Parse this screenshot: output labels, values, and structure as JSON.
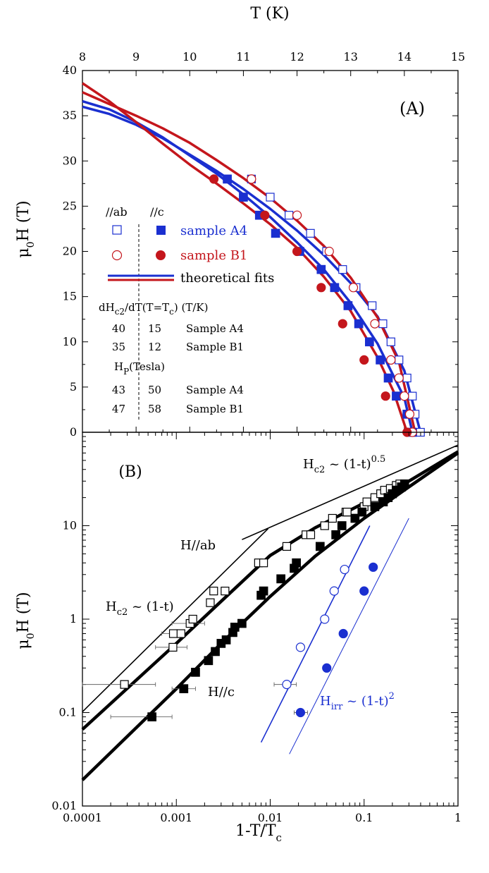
{
  "colors": {
    "blue": "#1a2fd0",
    "red": "#c4161c",
    "black": "#000000",
    "fill_white": "#ffffff"
  },
  "chart_data": [
    {
      "id": "A",
      "type": "scatter",
      "panel_label": "(A)",
      "xlabel": "T (K)",
      "ylabel_main": "μ",
      "ylabel_sub": "0",
      "ylabel_rest": "H (T)",
      "xlim": [
        8,
        15
      ],
      "ylim": [
        0,
        40
      ],
      "xticks": [
        8,
        9,
        10,
        11,
        12,
        13,
        14,
        15
      ],
      "yticks": [
        0,
        5,
        10,
        15,
        20,
        25,
        30,
        35,
        40
      ],
      "x_axis_position": "top",
      "legend": {
        "col_ab": "//ab",
        "col_c": "//c",
        "entries": [
          {
            "label": "sample A4",
            "color": "#1a2fd0"
          },
          {
            "label": "sample B1",
            "color": "#c4161c"
          },
          {
            "label": "theoretical fits",
            "color": "#000000"
          }
        ]
      },
      "table": {
        "header1_pre": "dH",
        "header1_sub": "c2",
        "header1_mid": "/dT(T=T",
        "header1_sub2": "c",
        "header1_post": ")  (T/K)",
        "rows1": [
          {
            "ab": "40",
            "c": "15",
            "sample": "Sample A4"
          },
          {
            "ab": "35",
            "c": "12",
            "sample": "Sample B1"
          }
        ],
        "header2_pre": "H",
        "header2_sub": "P",
        "header2_post": "(Tesla)",
        "rows2": [
          {
            "ab": "43",
            "c": "50",
            "sample": "Sample A4"
          },
          {
            "ab": "47",
            "c": "58",
            "sample": "Sample B1"
          }
        ]
      },
      "series": [
        {
          "name": "sample A4 //ab",
          "marker": "square-open",
          "color": "#1a2fd0",
          "points": [
            [
              11.15,
              28
            ],
            [
              11.5,
              26
            ],
            [
              11.85,
              24
            ],
            [
              12.25,
              22
            ],
            [
              12.55,
              20
            ],
            [
              12.85,
              18
            ],
            [
              13.1,
              16
            ],
            [
              13.4,
              14
            ],
            [
              13.6,
              12
            ],
            [
              13.75,
              10
            ],
            [
              13.9,
              8
            ],
            [
              14.05,
              6
            ],
            [
              14.15,
              4
            ],
            [
              14.2,
              2
            ],
            [
              14.3,
              0
            ]
          ]
        },
        {
          "name": "sample A4 //c",
          "marker": "square-filled",
          "color": "#1a2fd0",
          "points": [
            [
              10.7,
              28
            ],
            [
              11.0,
              26
            ],
            [
              11.3,
              24
            ],
            [
              11.6,
              22
            ],
            [
              12.05,
              20
            ],
            [
              12.45,
              18
            ],
            [
              12.7,
              16
            ],
            [
              12.95,
              14
            ],
            [
              13.15,
              12
            ],
            [
              13.35,
              10
            ],
            [
              13.55,
              8
            ],
            [
              13.7,
              6
            ],
            [
              13.85,
              4
            ],
            [
              14.05,
              2
            ],
            [
              14.15,
              0
            ]
          ]
        },
        {
          "name": "sample B1 //ab",
          "marker": "circle-open",
          "color": "#c4161c",
          "points": [
            [
              11.15,
              28
            ],
            [
              12.0,
              24
            ],
            [
              12.6,
              20
            ],
            [
              13.05,
              16
            ],
            [
              13.45,
              12
            ],
            [
              13.75,
              8
            ],
            [
              13.9,
              6
            ],
            [
              14.0,
              4
            ],
            [
              14.1,
              2
            ],
            [
              14.15,
              0
            ]
          ]
        },
        {
          "name": "sample B1 //c",
          "marker": "circle-filled",
          "color": "#c4161c",
          "points": [
            [
              10.45,
              28
            ],
            [
              11.4,
              24
            ],
            [
              12.0,
              20
            ],
            [
              12.45,
              16
            ],
            [
              12.85,
              12
            ],
            [
              13.25,
              8
            ],
            [
              13.65,
              4
            ],
            [
              14.05,
              0
            ]
          ]
        }
      ],
      "fit_curves": [
        {
          "color": "#1a2fd0",
          "points": [
            [
              8,
              36.6
            ],
            [
              8.5,
              35.7
            ],
            [
              9,
              34.3
            ],
            [
              9.5,
              32.6
            ],
            [
              10,
              30.6
            ],
            [
              10.5,
              28.6
            ],
            [
              11,
              26.3
            ],
            [
              11.5,
              23.8
            ],
            [
              12,
              21
            ],
            [
              12.5,
              18
            ],
            [
              13,
              14.3
            ],
            [
              13.5,
              9.8
            ],
            [
              14,
              3.8
            ],
            [
              14.15,
              0
            ]
          ]
        },
        {
          "color": "#1a2fd0",
          "points": [
            [
              8,
              36.0
            ],
            [
              8.5,
              35.2
            ],
            [
              9,
              34.0
            ],
            [
              9.5,
              32.5
            ],
            [
              10,
              30.7
            ],
            [
              10.5,
              28.9
            ],
            [
              11,
              26.9
            ],
            [
              11.5,
              24.7
            ],
            [
              12,
              22.3
            ],
            [
              12.5,
              19.6
            ],
            [
              13,
              16.5
            ],
            [
              13.5,
              12.8
            ],
            [
              14,
              6.8
            ],
            [
              14.3,
              0
            ]
          ]
        },
        {
          "color": "#c4161c",
          "points": [
            [
              8,
              38.6
            ],
            [
              8.5,
              36.6
            ],
            [
              9,
              34.3
            ],
            [
              9.5,
              31.9
            ],
            [
              10,
              29.6
            ],
            [
              10.5,
              27.5
            ],
            [
              11,
              25.3
            ],
            [
              11.5,
              23
            ],
            [
              12,
              20.4
            ],
            [
              12.5,
              17.2
            ],
            [
              13,
              13.4
            ],
            [
              13.5,
              8.3
            ],
            [
              13.8,
              4.5
            ],
            [
              14.05,
              0
            ]
          ]
        },
        {
          "color": "#c4161c",
          "points": [
            [
              8,
              37.6
            ],
            [
              8.5,
              36.3
            ],
            [
              9,
              35.0
            ],
            [
              9.5,
              33.6
            ],
            [
              10,
              32.0
            ],
            [
              10.5,
              30.1
            ],
            [
              11,
              28.1
            ],
            [
              11.5,
              25.9
            ],
            [
              12,
              23.4
            ],
            [
              12.5,
              20.6
            ],
            [
              13,
              17.1
            ],
            [
              13.5,
              12.7
            ],
            [
              13.9,
              7.8
            ],
            [
              14.2,
              0
            ]
          ]
        }
      ]
    },
    {
      "id": "B",
      "type": "scatter",
      "panel_label": "(B)",
      "xlabel_main": "1-T/T",
      "xlabel_sub": "c",
      "ylabel_main": "μ",
      "ylabel_sub": "0",
      "ylabel_rest": "H (T)",
      "xscale": "log",
      "yscale": "log",
      "xlim": [
        0.0001,
        1
      ],
      "ylim": [
        0.01,
        100
      ],
      "xticks": [
        {
          "value": 0.0001,
          "label": "0.0001"
        },
        {
          "value": 0.001,
          "label": "0.001"
        },
        {
          "value": 0.01,
          "label": "0.01"
        },
        {
          "value": 0.1,
          "label": "0.1"
        },
        {
          "value": 1,
          "label": "1"
        }
      ],
      "yticks": [
        {
          "value": 0.01,
          "label": "0.01"
        },
        {
          "value": 0.1,
          "label": "0.1"
        },
        {
          "value": 1,
          "label": "1"
        },
        {
          "value": 10,
          "label": "10"
        }
      ],
      "annotations": {
        "hab": "H//ab",
        "hc": "H//c",
        "lin_pre": "H",
        "lin_sub": "c2",
        "lin_post": " ~ (1-t)",
        "sqrt_pre": "H",
        "sqrt_sub": "c2",
        "sqrt_post": " ~ (1-t)",
        "sqrt_sup": "0.5",
        "irr_pre": "H",
        "irr_sub": "irr",
        "irr_post": " ~ (1-t)",
        "irr_sup": "2"
      },
      "series": [
        {
          "name": "H//ab open squares",
          "marker": "square-open",
          "color": "#000000",
          "points": [
            [
              0.00028,
              0.2
            ],
            [
              0.00092,
              0.5
            ],
            [
              0.00093,
              0.7
            ],
            [
              0.00112,
              0.7
            ],
            [
              0.0014,
              0.9
            ],
            [
              0.0015,
              1.0
            ],
            [
              0.0023,
              1.5
            ],
            [
              0.0025,
              2.0
            ],
            [
              0.0033,
              2.0
            ],
            [
              0.0075,
              4.0
            ],
            [
              0.0085,
              4.0
            ],
            [
              0.015,
              6.0
            ],
            [
              0.024,
              8.0
            ],
            [
              0.027,
              8.0
            ],
            [
              0.038,
              10.0
            ],
            [
              0.046,
              12.0
            ],
            [
              0.064,
              14.0
            ],
            [
              0.066,
              14.0
            ],
            [
              0.1,
              16.0
            ],
            [
              0.107,
              18.0
            ],
            [
              0.13,
              20.0
            ],
            [
              0.15,
              22.0
            ],
            [
              0.165,
              24.0
            ],
            [
              0.19,
              25.0
            ],
            [
              0.22,
              27.0
            ],
            [
              0.24,
              28.0
            ]
          ]
        },
        {
          "name": "H//c filled squares",
          "marker": "square-filled",
          "color": "#000000",
          "points": [
            [
              0.00055,
              0.09
            ],
            [
              0.0012,
              0.18
            ],
            [
              0.0016,
              0.27
            ],
            [
              0.0022,
              0.36
            ],
            [
              0.0026,
              0.45
            ],
            [
              0.003,
              0.55
            ],
            [
              0.0034,
              0.6
            ],
            [
              0.004,
              0.72
            ],
            [
              0.0042,
              0.82
            ],
            [
              0.005,
              0.9
            ],
            [
              0.008,
              1.8
            ],
            [
              0.0085,
              2.0
            ],
            [
              0.013,
              2.7
            ],
            [
              0.018,
              3.5
            ],
            [
              0.019,
              4.0
            ],
            [
              0.034,
              6.0
            ],
            [
              0.05,
              8.0
            ],
            [
              0.058,
              10.0
            ],
            [
              0.08,
              12.0
            ],
            [
              0.095,
              14.0
            ],
            [
              0.13,
              16.0
            ],
            [
              0.16,
              18.0
            ],
            [
              0.18,
              20.0
            ],
            [
              0.2,
              22.0
            ],
            [
              0.22,
              24.0
            ],
            [
              0.25,
              26.0
            ],
            [
              0.27,
              28.0
            ]
          ]
        },
        {
          "name": "Hirr open circles",
          "marker": "circle-open",
          "color": "#1a2fd0",
          "points": [
            [
              0.015,
              0.2
            ],
            [
              0.021,
              0.5
            ],
            [
              0.038,
              1.0
            ],
            [
              0.048,
              2.0
            ],
            [
              0.062,
              3.4
            ]
          ]
        },
        {
          "name": "Hirr filled circles",
          "marker": "circle-filled",
          "color": "#1a2fd0",
          "points": [
            [
              0.021,
              0.1
            ],
            [
              0.04,
              0.3
            ],
            [
              0.06,
              0.7
            ],
            [
              0.1,
              2.0
            ],
            [
              0.125,
              3.6
            ]
          ]
        }
      ],
      "error_bars_x": [
        {
          "x": 0.00028,
          "y": 0.2,
          "xmin": 0.0001,
          "xmax": 0.0006
        },
        {
          "x": 0.00092,
          "y": 0.5,
          "xmin": 0.0006,
          "xmax": 0.0013
        },
        {
          "x": 0.00093,
          "y": 0.7,
          "xmin": 0.0007,
          "xmax": 0.0012
        },
        {
          "x": 0.0014,
          "y": 0.9,
          "xmin": 0.0009,
          "xmax": 0.002
        },
        {
          "x": 0.00055,
          "y": 0.09,
          "xmin": 0.0002,
          "xmax": 0.0009
        },
        {
          "x": 0.0012,
          "y": 0.18,
          "xmin": 0.0009,
          "xmax": 0.0016
        },
        {
          "x": 0.015,
          "y": 0.2,
          "xmin": 0.011,
          "xmax": 0.019
        },
        {
          "x": 0.021,
          "y": 0.1,
          "xmin": 0.018,
          "xmax": 0.025
        }
      ],
      "fit_curves": [
        {
          "color": "#000000",
          "width": 4.5,
          "points": [
            [
              0.0001,
              0.066
            ],
            [
              0.001,
              0.55
            ],
            [
              0.003,
              1.55
            ],
            [
              0.01,
              4.8
            ],
            [
              0.03,
              9.5
            ],
            [
              0.1,
              17.5
            ],
            [
              0.3,
              30
            ],
            [
              1,
              62
            ]
          ]
        },
        {
          "color": "#000000",
          "width": 4.5,
          "points": [
            [
              0.0001,
              0.019
            ],
            [
              0.001,
              0.18
            ],
            [
              0.003,
              0.55
            ],
            [
              0.01,
              1.75
            ],
            [
              0.03,
              4.7
            ],
            [
              0.1,
              12
            ],
            [
              0.3,
              26
            ],
            [
              1,
              60
            ]
          ]
        }
      ],
      "ref_lines": [
        {
          "color": "#000000",
          "width": 1.6,
          "points": [
            [
              0.0001,
              0.102
            ],
            [
              0.0095,
              9.3
            ]
          ]
        },
        {
          "color": "#000000",
          "width": 1.6,
          "points": [
            [
              0.005,
              7.1
            ],
            [
              1,
              73
            ]
          ]
        },
        {
          "color": "#1a2fd0",
          "width": 1.6,
          "points": [
            [
              0.008,
              0.048
            ],
            [
              0.115,
              10.0
            ]
          ]
        },
        {
          "color": "#1a2fd0",
          "width": 1.0,
          "points": [
            [
              0.016,
              0.036
            ],
            [
              0.3,
              12.0
            ]
          ]
        }
      ]
    }
  ]
}
